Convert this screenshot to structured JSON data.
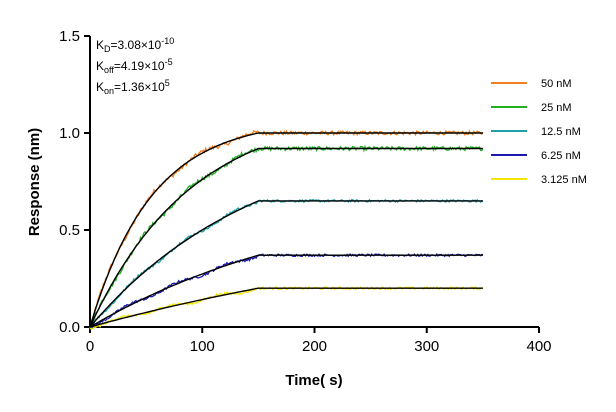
{
  "chart_data": {
    "type": "line",
    "title": "",
    "xlabel": "Time( s)",
    "ylabel": "Response (nm)",
    "xlim": [
      0,
      400
    ],
    "ylim": [
      0,
      1.5
    ],
    "xticks": [
      "0",
      "100",
      "200",
      "300",
      "400"
    ],
    "yticks": [
      "0.0",
      "0.5",
      "1.0",
      "1.5"
    ],
    "grid": false,
    "legend_position": "right",
    "association_end_s": 150,
    "end_time_s": 350,
    "annotations": [
      {
        "name": "KD",
        "base": "K",
        "sub": "D",
        "mantissa": "=3.08×10",
        "exp": "-10"
      },
      {
        "name": "Koff",
        "base": "K",
        "sub": "off",
        "mantissa": "=4.19×10",
        "exp": "-5"
      },
      {
        "name": "Kon",
        "base": "K",
        "sub": "on",
        "mantissa": "=1.36×10",
        "exp": "5"
      }
    ],
    "series": [
      {
        "name": "50 nM",
        "color": "#F07F1E",
        "plateau": 1.0,
        "tau": 55
      },
      {
        "name": "25 nM",
        "color": "#22B022",
        "plateau": 0.92,
        "tau": 90
      },
      {
        "name": "12.5 nM",
        "color": "#1FA0A8",
        "plateau": 0.65,
        "tau": 150
      },
      {
        "name": "6.25 nM",
        "color": "#1A1AB0",
        "plateau": 0.37,
        "tau": 220
      },
      {
        "name": "3.125 nM",
        "color": "#F2E600",
        "plateau": 0.2,
        "tau": 400
      }
    ],
    "fit_color": "#000000"
  }
}
